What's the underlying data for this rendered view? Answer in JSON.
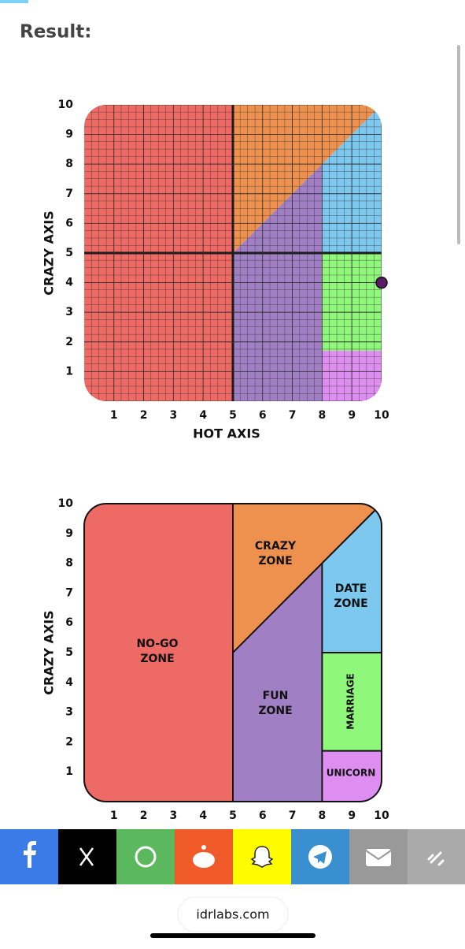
{
  "header": {
    "title": "Result:"
  },
  "chart_data": [
    {
      "type": "scatter",
      "xlabel": "HOT AXIS",
      "ylabel": "CRAZY AXIS",
      "xlim": [
        0,
        10
      ],
      "ylim": [
        0,
        10
      ],
      "xticks": [
        1,
        2,
        3,
        4,
        5,
        6,
        7,
        8,
        9,
        10
      ],
      "yticks": [
        1,
        2,
        3,
        4,
        5,
        6,
        7,
        8,
        9,
        10
      ],
      "x": [
        10
      ],
      "values": [
        4
      ],
      "color": "#5b1a66",
      "grid": true
    },
    {
      "type": "zones",
      "xlabel": "HOT AXIS",
      "ylabel": "CRAZY AXIS",
      "xlim": [
        0,
        10
      ],
      "ylim": [
        0,
        10
      ],
      "xticks": [
        1,
        2,
        3,
        4,
        5,
        6,
        7,
        8,
        9,
        10
      ],
      "yticks": [
        1,
        2,
        3,
        4,
        5,
        6,
        7,
        8,
        9,
        10
      ],
      "zones": [
        [
          "NO-GO",
          "ZONE"
        ],
        [
          "CRAZY",
          "ZONE"
        ],
        [
          "DATE",
          "ZONE"
        ],
        [
          "FUN",
          "ZONE"
        ],
        [
          "MARRIAGE"
        ],
        [
          "UNICORN"
        ]
      ]
    }
  ],
  "footer": {
    "site": "idrlabs.com"
  }
}
